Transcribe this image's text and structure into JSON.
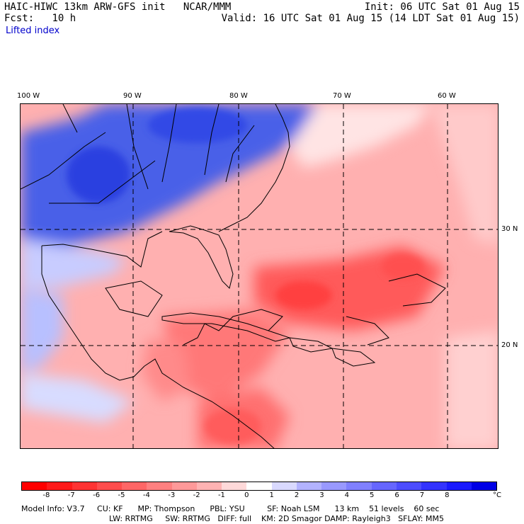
{
  "header": {
    "model": "HAIC-HIWC 13km ARW-GFS init",
    "org": "NCAR/MMM",
    "init": "Init: 06 UTC Sat 01 Aug 15",
    "fcst_label": "Fcst:",
    "fcst_value": "10 h",
    "valid": "Valid: 16 UTC Sat 01 Aug 15 (14 LDT Sat 01 Aug 15)",
    "field": "Lifted index"
  },
  "map": {
    "lon_labels": [
      "100 W",
      "90 W",
      "80 W",
      "70 W",
      "60 W"
    ],
    "lat_labels": [
      "30 N",
      "20 N"
    ]
  },
  "colorbar": {
    "unit": "°C",
    "ticks": [
      "-8",
      "-7",
      "-6",
      "-5",
      "-4",
      "-3",
      "-2",
      "-1",
      "0",
      "1",
      "2",
      "3",
      "4",
      "5",
      "6",
      "7",
      "8"
    ],
    "colors": [
      "#ff0000",
      "#ff1a1a",
      "#ff3333",
      "#ff4d4d",
      "#ff6666",
      "#ff8080",
      "#ff9999",
      "#ffb3b3",
      "#ffd9d9",
      "#ffffff",
      "#d9d9ff",
      "#b3b3ff",
      "#9999ff",
      "#8080ff",
      "#6666ff",
      "#4d4dff",
      "#3333ff",
      "#1a1aff",
      "#0000e6"
    ]
  },
  "footer": {
    "line1": "Model Info: V3.7     CU: KF      MP: Thompson      PBL: YSU         SF: Noah LSM      13 km    51 levels    60 sec",
    "line2": "LW: RRTMG     SW: RRTMG   DIFF: full    KM: 2D Smagor DAMP: Rayleigh3   SFLAY: MM5"
  }
}
